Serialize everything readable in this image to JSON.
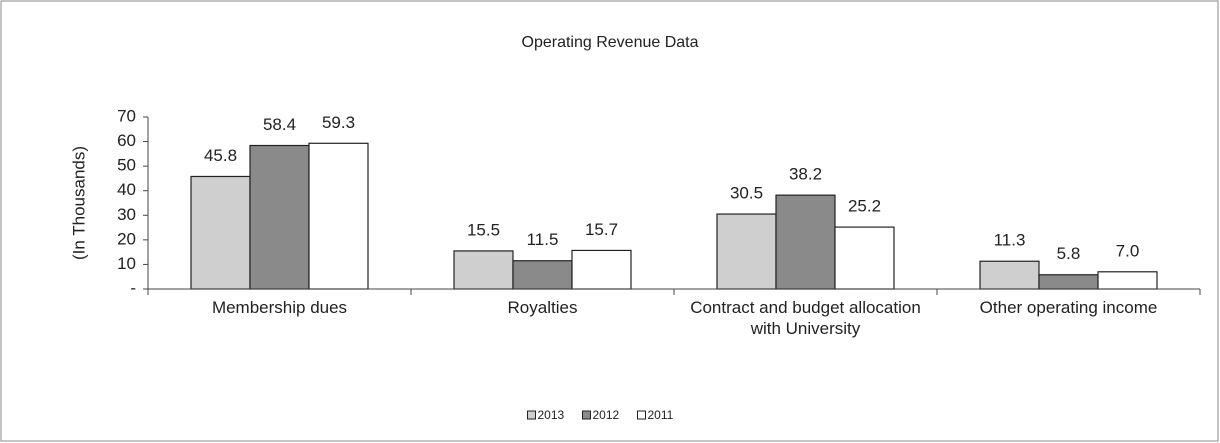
{
  "chart_data": {
    "type": "bar",
    "title": "Operating Revenue Data",
    "y_label": "(In Thousands)",
    "categories": [
      "Membership dues",
      "Royalties",
      "Contract and budget allocation with University",
      "Other operating income"
    ],
    "series": [
      {
        "name": "2013",
        "color": "#cfcfcf",
        "values": [
          45.8,
          15.5,
          30.5,
          11.3
        ],
        "value_labels": [
          "45.8",
          "15.5",
          "30.5",
          "11.3"
        ]
      },
      {
        "name": "2012",
        "color": "#8a8a8a",
        "values": [
          58.4,
          11.5,
          38.2,
          5.8
        ],
        "value_labels": [
          "58.4",
          "11.5",
          "38.2",
          "5.8"
        ]
      },
      {
        "name": "2011",
        "color": "#ffffff",
        "values": [
          59.3,
          15.7,
          25.2,
          7.0
        ],
        "value_labels": [
          "59.3",
          "15.7",
          "25.2",
          "7.0"
        ]
      }
    ],
    "ylim": [
      0,
      70
    ],
    "yticks": [
      {
        "value": 0,
        "label": "-"
      },
      10,
      20,
      30,
      40,
      50,
      60,
      70
    ],
    "legend": "bottom"
  }
}
